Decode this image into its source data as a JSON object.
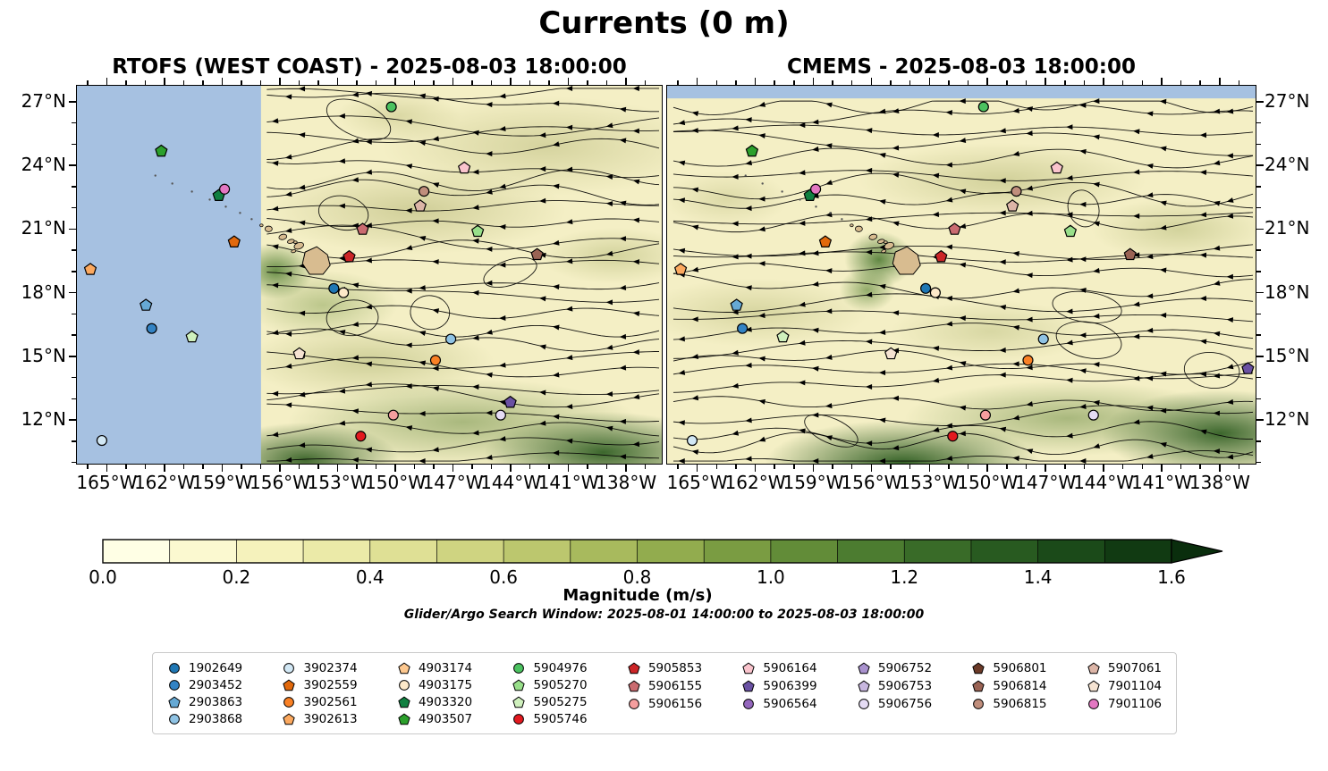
{
  "figure": {
    "title": "Currents (0 m)",
    "magnitude_label": "Magnitude (m/s)",
    "search_window": "Glider/Argo Search Window: 2025-08-01 14:00:00 to 2025-08-03 18:00:00"
  },
  "panels": [
    {
      "title": "RTOFS (WEST COAST) - 2025-08-03 18:00:00"
    },
    {
      "title": "CMEMS - 2025-08-03 18:00:00"
    }
  ],
  "legend": {
    "column_sizes": [
      4,
      4,
      4,
      4,
      3,
      3,
      3,
      3,
      3
    ]
  },
  "chart_data": {
    "type": "streamplot-map",
    "title": "Currents (0 m)",
    "depth": "0 m",
    "panel_titles": [
      "RTOFS (WEST COAST) - 2025-08-03 18:00:00",
      "CMEMS - 2025-08-03 18:00:00"
    ],
    "lon_range_deg": [
      -166.6,
      -136.1
    ],
    "lat_range_deg": [
      9.9,
      27.8
    ],
    "lon_ticks": [
      {
        "label": "165°W",
        "value": -165
      },
      {
        "label": "162°W",
        "value": -162
      },
      {
        "label": "159°W",
        "value": -159
      },
      {
        "label": "156°W",
        "value": -156
      },
      {
        "label": "153°W",
        "value": -153
      },
      {
        "label": "150°W",
        "value": -150
      },
      {
        "label": "147°W",
        "value": -147
      },
      {
        "label": "144°W",
        "value": -144
      },
      {
        "label": "141°W",
        "value": -141
      },
      {
        "label": "138°W",
        "value": -138
      }
    ],
    "lat_ticks": [
      {
        "label": "27°N",
        "value": 27
      },
      {
        "label": "24°N",
        "value": 24
      },
      {
        "label": "21°N",
        "value": 21
      },
      {
        "label": "18°N",
        "value": 18
      },
      {
        "label": "15°N",
        "value": 15
      },
      {
        "label": "12°N",
        "value": 12
      }
    ],
    "colorbar": {
      "label": "Magnitude (m/s)",
      "min": 0.0,
      "max": 1.6,
      "tick_step": 0.2,
      "tick_labels": [
        "0.0",
        "0.2",
        "0.4",
        "0.6",
        "0.8",
        "1.0",
        "1.2",
        "1.4",
        "1.6"
      ],
      "segment_colors": [
        "#ffffe5",
        "#fbf9d0",
        "#f5f2bc",
        "#ebeaa8",
        "#dfe095",
        "#cfd481",
        "#bcc76e",
        "#a8ba5d",
        "#92ac4e",
        "#7a9c42",
        "#628c38",
        "#4c7c30",
        "#396b28",
        "#285a20",
        "#1b4a19",
        "#113a12"
      ],
      "arrow_color": "#0a2e0d"
    },
    "no_data_color": "#a6c1e1",
    "land_color": "#d8bc90",
    "rtofs_no_data_lon_max": -157.0,
    "cmems_no_data_lat_min": 27.2,
    "floats": [
      {
        "id": "1902649",
        "shape": "circle",
        "color": "#1f77b4",
        "lon": -153.2,
        "lat": 18.2
      },
      {
        "id": "2903452",
        "shape": "circle",
        "color": "#3383c4",
        "lon": -162.7,
        "lat": 16.3
      },
      {
        "id": "2903863",
        "shape": "pentagon",
        "color": "#66a9d4",
        "lon": -163.0,
        "lat": 17.4
      },
      {
        "id": "2903868",
        "shape": "circle",
        "color": "#8fc3e4",
        "lon": -147.1,
        "lat": 15.8
      },
      {
        "id": "3902374",
        "shape": "circle",
        "color": "#d2e8f5",
        "lon": -165.3,
        "lat": 11.0
      },
      {
        "id": "3902559",
        "shape": "pentagon",
        "color": "#e2690c",
        "lon": -158.4,
        "lat": 20.4
      },
      {
        "id": "3902561",
        "shape": "circle",
        "color": "#fa8125",
        "lon": -147.9,
        "lat": 14.8
      },
      {
        "id": "3902613",
        "shape": "pentagon",
        "color": "#fca95f",
        "lon": -165.9,
        "lat": 19.1
      },
      {
        "id": "4903174",
        "shape": "pentagon",
        "color": "#fdc88f"
      },
      {
        "id": "4903175",
        "shape": "circle",
        "color": "#fde9c9",
        "lon": -152.7,
        "lat": 18.0
      },
      {
        "id": "4903320",
        "shape": "pentagon",
        "color": "#108040",
        "lon": -159.2,
        "lat": 22.6
      },
      {
        "id": "4903507",
        "shape": "pentagon",
        "color": "#2ca02c",
        "lon": -162.2,
        "lat": 24.7
      },
      {
        "id": "5904976",
        "shape": "circle",
        "color": "#4bc260",
        "lon": -150.2,
        "lat": 26.8
      },
      {
        "id": "5905270",
        "shape": "pentagon",
        "color": "#98df8a",
        "lon": -145.7,
        "lat": 20.9
      },
      {
        "id": "5905275",
        "shape": "pentagon",
        "color": "#cff0bd",
        "lon": -160.6,
        "lat": 15.9
      },
      {
        "id": "5905746",
        "shape": "circle",
        "color": "#e3191f",
        "lon": -151.8,
        "lat": 11.2
      },
      {
        "id": "5905853",
        "shape": "pentagon",
        "color": "#cc2527",
        "lon": -152.4,
        "lat": 19.7
      },
      {
        "id": "5906155",
        "shape": "pentagon",
        "color": "#ca6b70",
        "lon": -151.7,
        "lat": 21.0
      },
      {
        "id": "5906156",
        "shape": "circle",
        "color": "#f59e9e",
        "lon": -150.1,
        "lat": 12.2
      },
      {
        "id": "5906164",
        "shape": "pentagon",
        "color": "#fac4cd",
        "lon": -146.4,
        "lat": 23.9
      },
      {
        "id": "5906399",
        "shape": "pentagon",
        "color": "#6a51a3",
        "lon": -144.0,
        "lat": 12.8,
        "lon2": -136.5,
        "lat2": 14.4
      },
      {
        "id": "5906564",
        "shape": "circle",
        "color": "#9467bd"
      },
      {
        "id": "5906752",
        "shape": "pentagon",
        "color": "#a992ce"
      },
      {
        "id": "5906753",
        "shape": "pentagon",
        "color": "#c8b7df"
      },
      {
        "id": "5906756",
        "shape": "circle",
        "color": "#e5dcf4",
        "lon": -144.5,
        "lat": 12.2
      },
      {
        "id": "5906801",
        "shape": "pentagon",
        "color": "#6b3a28"
      },
      {
        "id": "5906814",
        "shape": "pentagon",
        "color": "#9a6354",
        "lon": -142.6,
        "lat": 19.8
      },
      {
        "id": "5906815",
        "shape": "circle",
        "color": "#c08e7c",
        "lon": -148.5,
        "lat": 22.8
      },
      {
        "id": "5907061",
        "shape": "pentagon",
        "color": "#dcb5a7",
        "lon": -148.7,
        "lat": 22.1
      },
      {
        "id": "7901104",
        "shape": "pentagon",
        "color": "#f5e3d2",
        "lon": -155.0,
        "lat": 15.1
      },
      {
        "id": "7901106",
        "shape": "circle",
        "color": "#e377c2",
        "lon": -158.9,
        "lat": 22.9
      }
    ]
  }
}
